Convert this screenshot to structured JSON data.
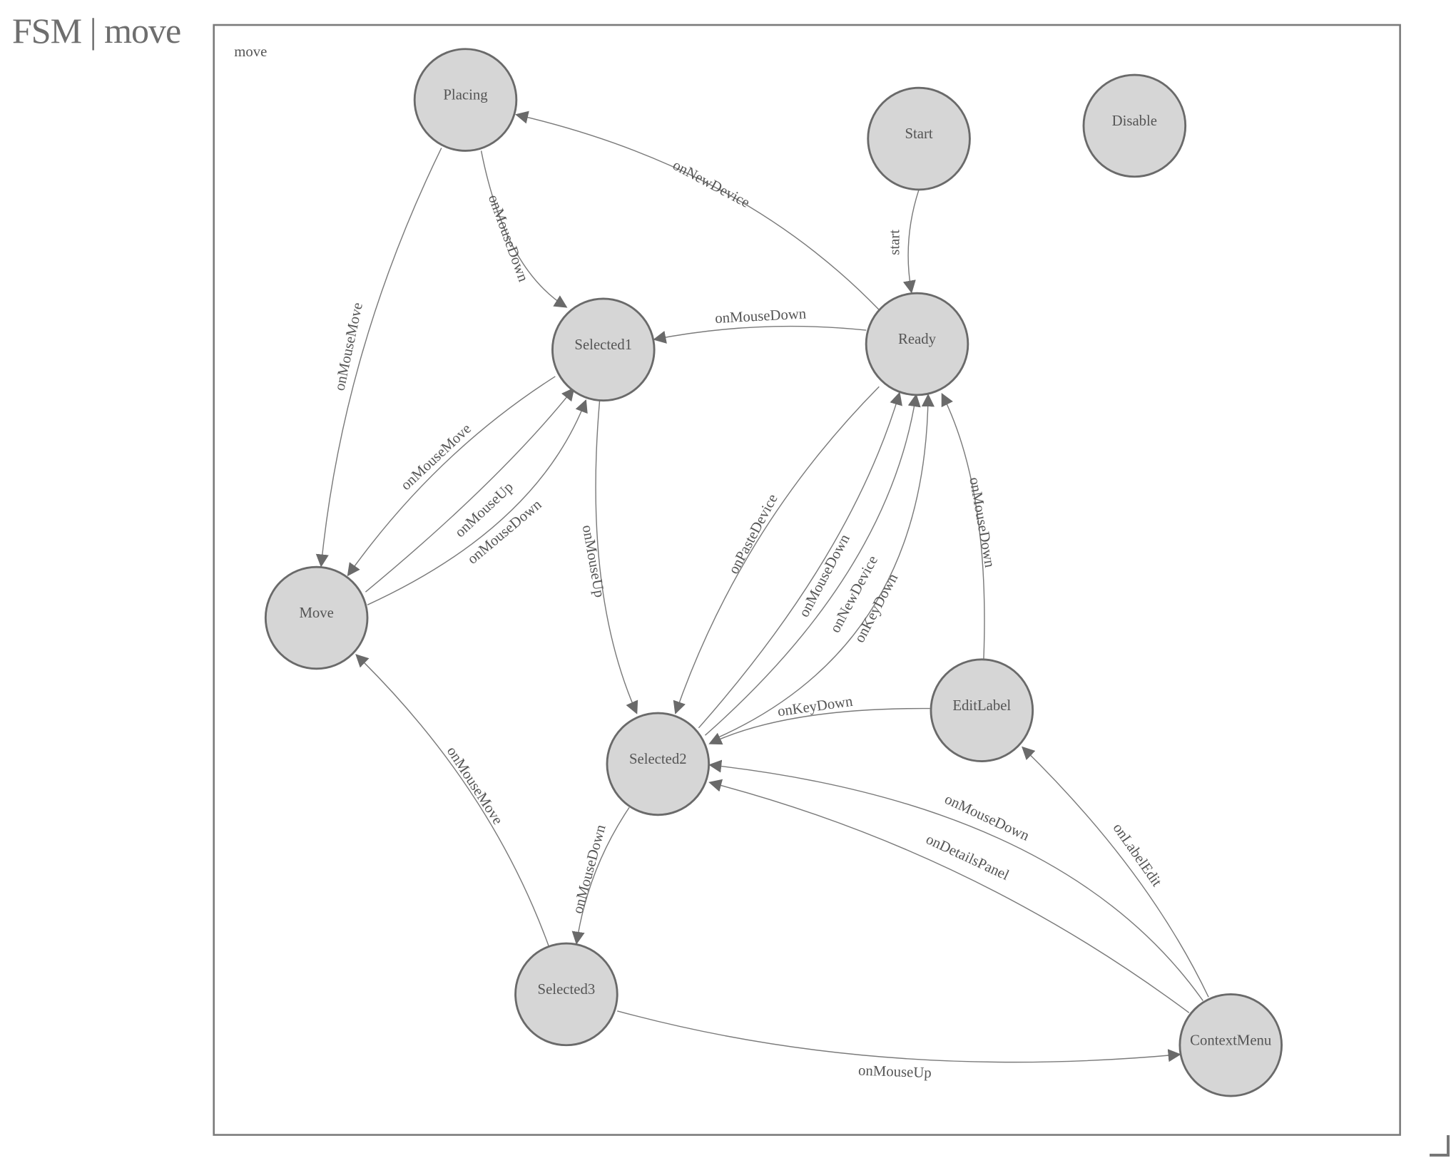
{
  "header": {
    "title": "FSM | move"
  },
  "diagram": {
    "group_label": "move",
    "node_fill": "#d6d6d6",
    "node_stroke": "#6a6a6a",
    "edge_color": "#7a7a7a",
    "nodes": [
      "Placing",
      "Start",
      "Disable",
      "Selected1",
      "Ready",
      "Move",
      "Selected2",
      "EditLabel",
      "Selected3",
      "ContextMenu"
    ],
    "edges": [
      {
        "from": "Start",
        "to": "Ready",
        "label": "start"
      },
      {
        "from": "Ready",
        "to": "Placing",
        "label": "onNewDevice"
      },
      {
        "from": "Ready",
        "to": "Selected1",
        "label": "onMouseDown"
      },
      {
        "from": "Placing",
        "to": "Selected1",
        "label": "onMouseDown"
      },
      {
        "from": "Placing",
        "to": "Move",
        "label": "onMouseMove"
      },
      {
        "from": "Selected1",
        "to": "Move",
        "label": "onMouseMove"
      },
      {
        "from": "Move",
        "to": "Selected1",
        "label": "onMouseUp"
      },
      {
        "from": "Move",
        "to": "Selected1",
        "label": "onMouseDown"
      },
      {
        "from": "Selected1",
        "to": "Selected2",
        "label": "onMouseUp"
      },
      {
        "from": "Ready",
        "to": "Selected2",
        "label": "onPasteDevice"
      },
      {
        "from": "Selected2",
        "to": "Ready",
        "label": "onMouseDown"
      },
      {
        "from": "Selected2",
        "to": "Ready",
        "label": "onNewDevice"
      },
      {
        "from": "Selected2",
        "to": "Ready",
        "label": "onKeyDown"
      },
      {
        "from": "EditLabel",
        "to": "Ready",
        "label": "onMouseDown"
      },
      {
        "from": "EditLabel",
        "to": "Selected2",
        "label": "onKeyDown"
      },
      {
        "from": "ContextMenu",
        "to": "Selected2",
        "label": "onMouseDown"
      },
      {
        "from": "ContextMenu",
        "to": "Selected2",
        "label": "onDetailsPanel"
      },
      {
        "from": "ContextMenu",
        "to": "EditLabel",
        "label": "onLabelEdit"
      },
      {
        "from": "Selected2",
        "to": "Selected3",
        "label": "onMouseDown"
      },
      {
        "from": "Selected3",
        "to": "Move",
        "label": "onMouseMove"
      },
      {
        "from": "Selected3",
        "to": "ContextMenu",
        "label": "onMouseUp"
      }
    ]
  }
}
